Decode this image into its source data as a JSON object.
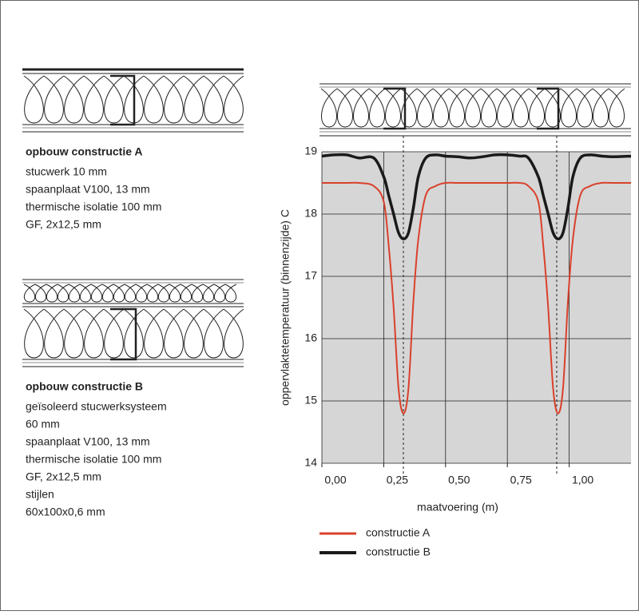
{
  "left": {
    "construction_a": {
      "title": "opbouw  constructie A",
      "lines": [
        "stucwerk 10 mm",
        "spaanplaat V100, 13 mm",
        "thermische isolatie 100 mm",
        "GF, 2x12,5 mm"
      ]
    },
    "construction_b": {
      "title": "opbouw constructie B",
      "lines": [
        "geïsoleerd stucwerksysteem",
        "60 mm",
        "spaanplaat V100, 13 mm",
        "thermische isolatie 100 mm",
        "GF, 2x12,5 mm",
        "stijlen",
        "60x100x0,6 mm"
      ]
    }
  },
  "chart_data": {
    "type": "line",
    "y_label": "oppervlaktetemperatuur (binnenzijde) C",
    "x_label": "maatvoering (m)",
    "xlim": [
      0,
      1.25
    ],
    "ylim": [
      14,
      19
    ],
    "xticks": [
      {
        "value": 0,
        "label": "0,00"
      },
      {
        "value": 0.25,
        "label": "0,25"
      },
      {
        "value": 0.5,
        "label": "0,50"
      },
      {
        "value": 0.75,
        "label": "0,75"
      },
      {
        "value": 1,
        "label": "1,00"
      }
    ],
    "yticks": [
      14,
      15,
      16,
      17,
      18,
      19
    ],
    "grid": true,
    "x": [
      0,
      0.05,
      0.1,
      0.15,
      0.21,
      0.25,
      0.27,
      0.29,
      0.31,
      0.33,
      0.35,
      0.37,
      0.39,
      0.42,
      0.46,
      0.5,
      0.55,
      0.6,
      0.65,
      0.7,
      0.75,
      0.8,
      0.835,
      0.875,
      0.895,
      0.915,
      0.935,
      0.955,
      0.975,
      0.995,
      1.015,
      1.045,
      1.085,
      1.13,
      1.18,
      1.25
    ],
    "series": [
      {
        "name": "constructie A",
        "color": "#d9412b",
        "values": [
          18.5,
          18.5,
          18.5,
          18.5,
          18.45,
          18.2,
          17.5,
          16.5,
          15.2,
          14.8,
          15.2,
          16.6,
          17.6,
          18.3,
          18.45,
          18.5,
          18.5,
          18.5,
          18.5,
          18.5,
          18.5,
          18.5,
          18.45,
          18.2,
          17.5,
          16.5,
          15.2,
          14.8,
          15.2,
          16.6,
          17.6,
          18.3,
          18.45,
          18.5,
          18.5,
          18.5
        ]
      },
      {
        "name": "constructie B",
        "color": "#1a1a1a",
        "values": [
          18.93,
          18.95,
          18.95,
          18.9,
          18.9,
          18.6,
          18.3,
          18.0,
          17.7,
          17.6,
          17.7,
          18.1,
          18.6,
          18.9,
          18.95,
          18.93,
          18.92,
          18.9,
          18.92,
          18.95,
          18.95,
          18.93,
          18.9,
          18.6,
          18.3,
          18.0,
          17.7,
          17.6,
          17.7,
          18.1,
          18.6,
          18.9,
          18.95,
          18.93,
          18.92,
          18.93
        ]
      }
    ]
  }
}
